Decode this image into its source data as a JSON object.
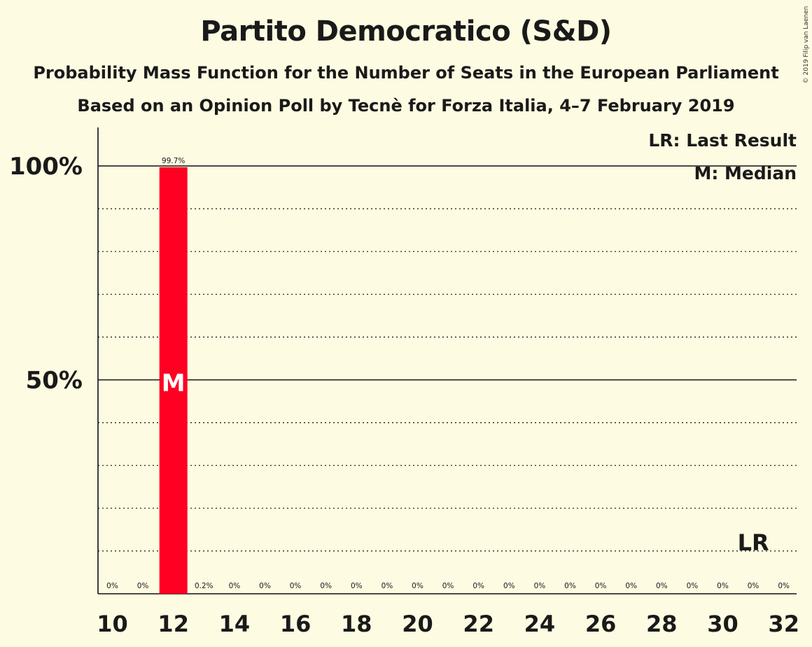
{
  "title": "Partito Democratico (S&D)",
  "subtitle1": "Probability Mass Function for the Number of Seats in the European Parliament",
  "subtitle2": "Based on an Opinion Poll by Tecnè for Forza Italia, 4–7 February 2019",
  "copyright": "© 2019 Filip van Laenen",
  "colors": {
    "bar": "#ff0022",
    "background": "#fdfbe1",
    "text": "#1a1a1a"
  },
  "chart_data": {
    "type": "bar",
    "x": [
      10,
      11,
      12,
      13,
      14,
      15,
      16,
      17,
      18,
      19,
      20,
      21,
      22,
      23,
      24,
      25,
      26,
      27,
      28,
      29,
      30,
      31,
      32
    ],
    "values": [
      0,
      0,
      99.7,
      0.2,
      0,
      0,
      0,
      0,
      0,
      0,
      0,
      0,
      0,
      0,
      0,
      0,
      0,
      0,
      0,
      0,
      0,
      0,
      0
    ],
    "value_labels": [
      "0%",
      "0%",
      "99.7%",
      "0.2%",
      "0%",
      "0%",
      "0%",
      "0%",
      "0%",
      "0%",
      "0%",
      "0%",
      "0%",
      "0%",
      "0%",
      "0%",
      "0%",
      "0%",
      "0%",
      "0%",
      "0%",
      "0%",
      "0%"
    ],
    "x_tick_labels": [
      "10",
      "12",
      "14",
      "16",
      "18",
      "20",
      "22",
      "24",
      "26",
      "28",
      "30",
      "32"
    ],
    "y_tick_labels": [
      {
        "value": 50,
        "label": "50%"
      },
      {
        "value": 100,
        "label": "100%"
      }
    ],
    "ylim": [
      0,
      110
    ],
    "median": 12,
    "median_label": "M",
    "last_result": 31,
    "last_result_label": "LR",
    "legend": [
      "LR: Last Result",
      "M: Median"
    ],
    "legend_position": "top-right",
    "grid": "dotted every 10%, solid at 50% and 100%"
  }
}
